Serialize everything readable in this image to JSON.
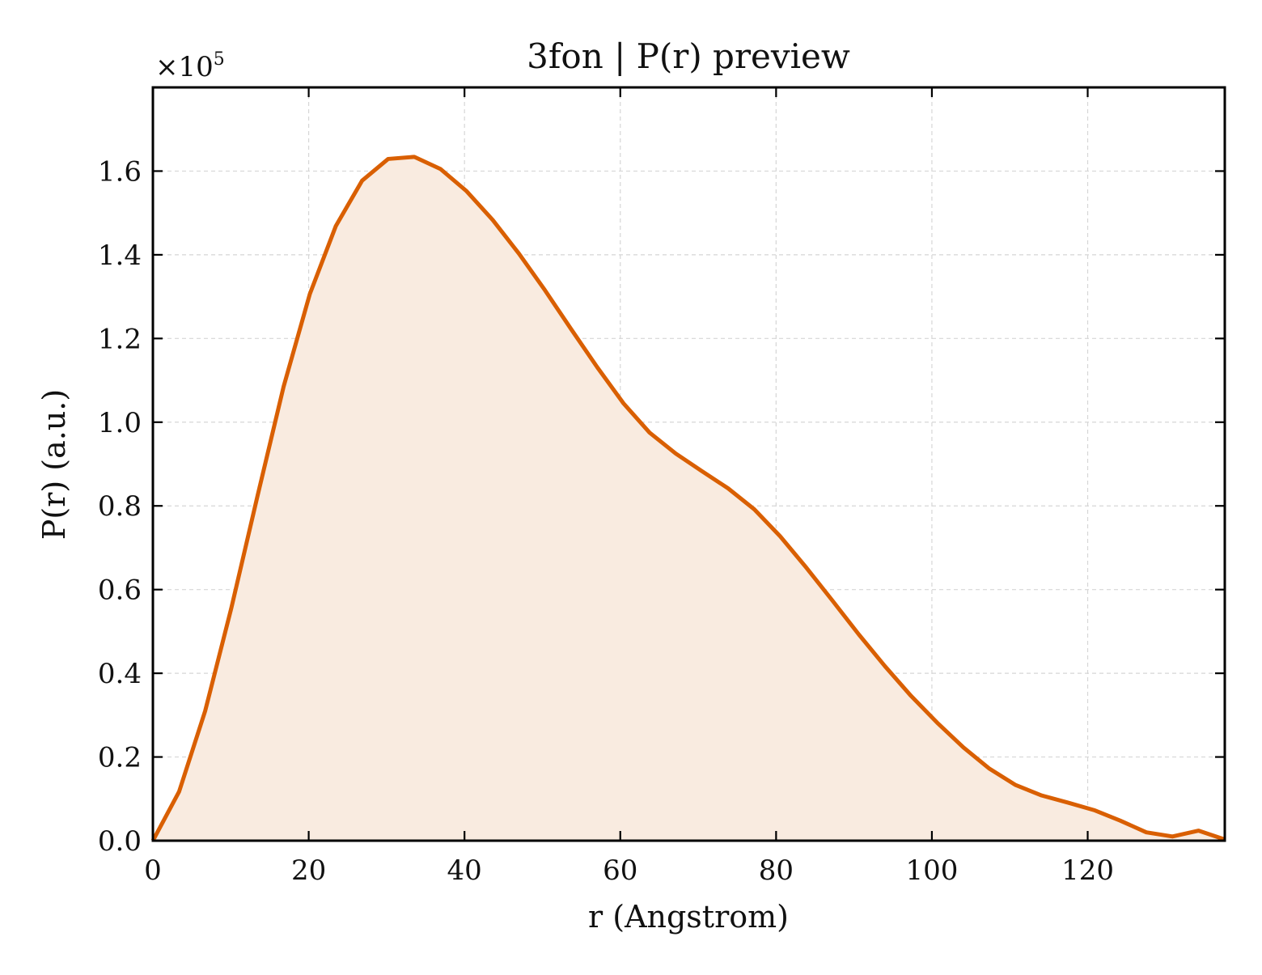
{
  "chart_data": {
    "type": "area",
    "title": "3fon | P(r) preview",
    "xlabel": "r (Angstrom)",
    "ylabel": "P(r) (a.u.)",
    "y_offset_text": {
      "base": "×10",
      "exponent": "5"
    },
    "xlim": [
      0,
      137.6
    ],
    "ylim": [
      0,
      1.8
    ],
    "y_scale_multiplier": 100000,
    "x_ticks": [
      0,
      20,
      40,
      60,
      80,
      100,
      120
    ],
    "x_tick_labels": [
      "0",
      "20",
      "40",
      "60",
      "80",
      "100",
      "120"
    ],
    "y_ticks": [
      0,
      0.2,
      0.4,
      0.6,
      0.8,
      1.0,
      1.2,
      1.4,
      1.6
    ],
    "y_tick_labels": [
      "0.0",
      "0.2",
      "0.4",
      "0.6",
      "0.8",
      "1.0",
      "1.2",
      "1.4",
      "1.6"
    ],
    "grid": true,
    "legend": "none",
    "colors": {
      "line": "#d95f02",
      "fill": "#f9ebe0",
      "grid": "#d6d6d6",
      "axes": "#000000"
    },
    "series": [
      {
        "x": [
          0,
          3.36,
          6.71,
          10.07,
          13.42,
          16.78,
          20.14,
          23.49,
          26.85,
          30.2,
          33.56,
          36.92,
          40.27,
          43.63,
          46.98,
          50.34,
          53.7,
          57.05,
          60.41,
          63.76,
          67.12,
          70.48,
          73.83,
          77.19,
          80.54,
          83.9,
          87.26,
          90.61,
          93.97,
          97.32,
          100.68,
          104.04,
          107.39,
          110.75,
          114.1,
          117.46,
          120.82,
          124.17,
          127.53,
          130.88,
          134.24,
          137.6
        ],
        "y": [
          0.0,
          0.117,
          0.31,
          0.556,
          0.823,
          1.085,
          1.306,
          1.469,
          1.577,
          1.629,
          1.634,
          1.605,
          1.552,
          1.483,
          1.403,
          1.315,
          1.222,
          1.131,
          1.045,
          0.975,
          0.925,
          0.883,
          0.842,
          0.792,
          0.727,
          0.652,
          0.573,
          0.493,
          0.417,
          0.346,
          0.282,
          0.223,
          0.172,
          0.133,
          0.108,
          0.091,
          0.073,
          0.048,
          0.02,
          0.01,
          0.024,
          0.003
        ]
      }
    ]
  }
}
